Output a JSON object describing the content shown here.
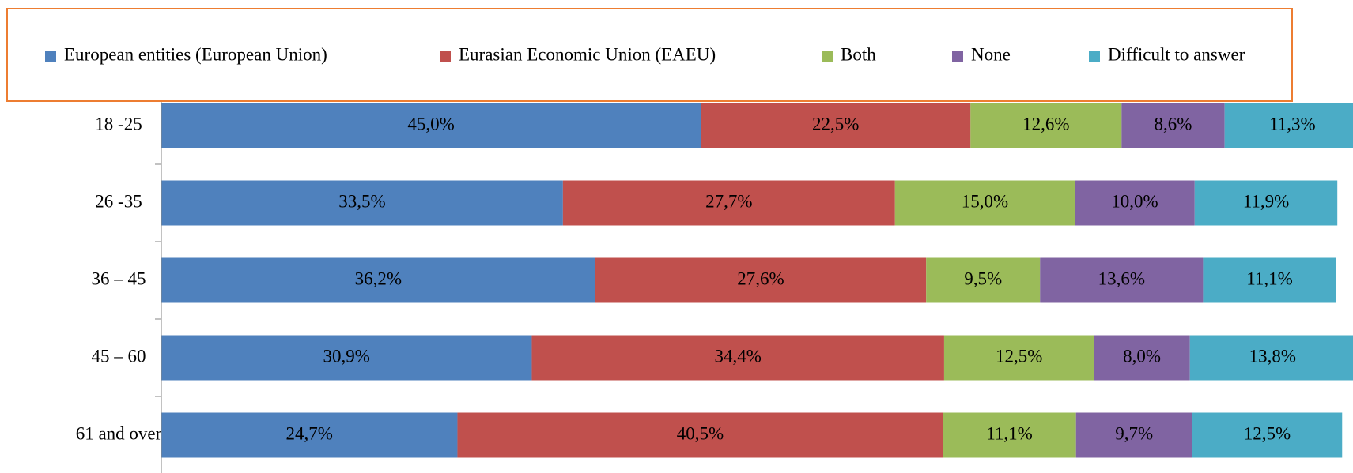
{
  "chart_data": {
    "type": "stacked_bar_horizontal",
    "categories": [
      "18 -25",
      "26 -35",
      "36 – 45",
      "45 – 60",
      "61 and over"
    ],
    "series": [
      {
        "name": "European entities (European Union)",
        "color": "#4f81bd",
        "values": [
          45.0,
          33.5,
          36.2,
          30.9,
          24.7
        ],
        "value_labels": [
          "45,0%",
          "33,5%",
          "36,2%",
          "30,9%",
          "24,7%"
        ]
      },
      {
        "name": "Eurasian Economic Union (EAEU)",
        "color": "#c0504d",
        "values": [
          22.5,
          27.7,
          27.6,
          34.4,
          40.5
        ],
        "value_labels": [
          "22,5%",
          "27,7%",
          "27,6%",
          "34,4%",
          "40,5%"
        ]
      },
      {
        "name": "Both",
        "color": "#9bbb59",
        "values": [
          12.6,
          15.0,
          9.5,
          12.5,
          11.1
        ],
        "value_labels": [
          "12,6%",
          "15,0%",
          "9,5%",
          "12,5%",
          "11,1%"
        ]
      },
      {
        "name": "None",
        "color": "#8064a2",
        "values": [
          8.6,
          10.0,
          13.6,
          8.0,
          9.7
        ],
        "value_labels": [
          "8,6%",
          "10,0%",
          "13,6%",
          "8,0%",
          "9,7%"
        ]
      },
      {
        "name": "Difficult to answer",
        "color": "#4bacc6",
        "values": [
          11.3,
          11.9,
          11.1,
          13.8,
          12.5
        ],
        "value_labels": [
          "11,3%",
          "11,9%",
          "11,1%",
          "13,8%",
          "12,5%"
        ]
      }
    ],
    "xlim": [
      0,
      100
    ],
    "legend": "top",
    "legend_border_color": "#ed7d31"
  }
}
